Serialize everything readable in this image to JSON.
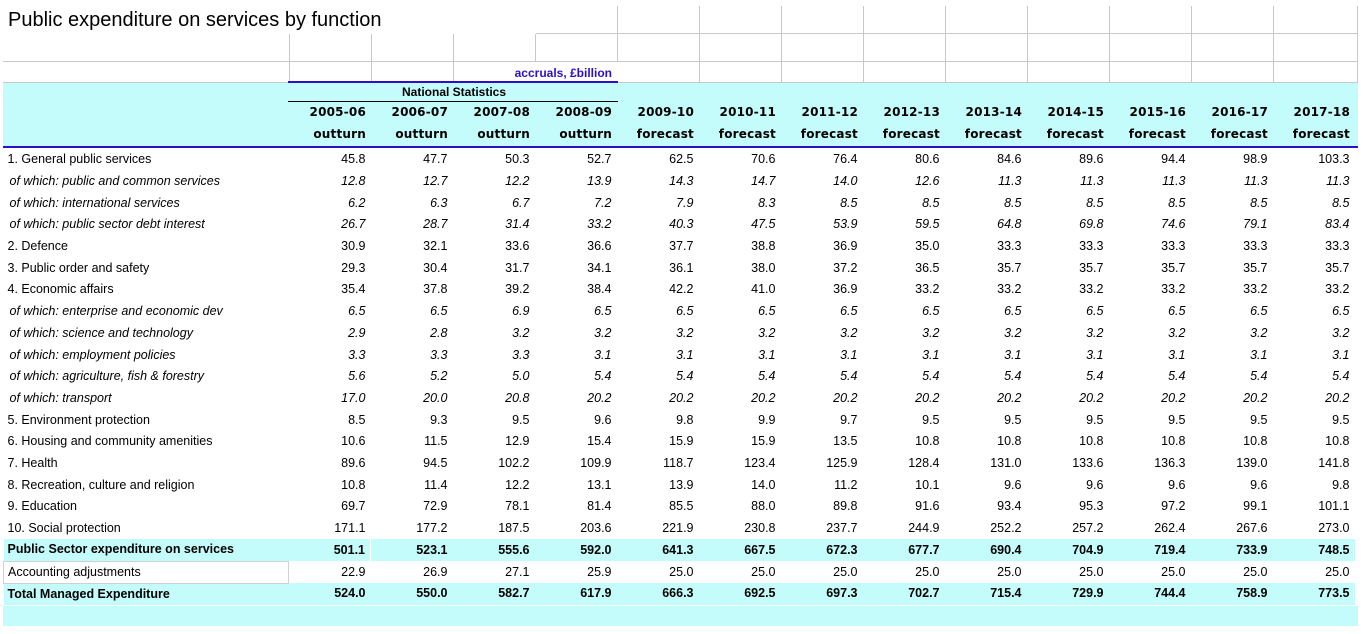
{
  "title": "Public expenditure on services by function",
  "units_label": "accruals, £billion",
  "stats_label": "National Statistics",
  "columns": [
    {
      "year": "2005-06",
      "kind": "outturn"
    },
    {
      "year": "2006-07",
      "kind": "outturn"
    },
    {
      "year": "2007-08",
      "kind": "outturn"
    },
    {
      "year": "2008-09",
      "kind": "outturn"
    },
    {
      "year": "2009-10",
      "kind": "forecast"
    },
    {
      "year": "2010-11",
      "kind": "forecast"
    },
    {
      "year": "2011-12",
      "kind": "forecast"
    },
    {
      "year": "2012-13",
      "kind": "forecast"
    },
    {
      "year": "2013-14",
      "kind": "forecast"
    },
    {
      "year": "2014-15",
      "kind": "forecast"
    },
    {
      "year": "2015-16",
      "kind": "forecast"
    },
    {
      "year": "2016-17",
      "kind": "forecast"
    },
    {
      "year": "2017-18",
      "kind": "forecast"
    }
  ],
  "rows": [
    {
      "label": "1. General public services",
      "style": "main",
      "values": [
        "45.8",
        "47.7",
        "50.3",
        "52.7",
        "62.5",
        "70.6",
        "76.4",
        "80.6",
        "84.6",
        "89.6",
        "94.4",
        "98.9",
        "103.3"
      ]
    },
    {
      "label": "of which: public and common services",
      "style": "sub",
      "values": [
        "12.8",
        "12.7",
        "12.2",
        "13.9",
        "14.3",
        "14.7",
        "14.0",
        "12.6",
        "11.3",
        "11.3",
        "11.3",
        "11.3",
        "11.3"
      ]
    },
    {
      "label": "of which: international services",
      "style": "sub",
      "values": [
        "6.2",
        "6.3",
        "6.7",
        "7.2",
        "7.9",
        "8.3",
        "8.5",
        "8.5",
        "8.5",
        "8.5",
        "8.5",
        "8.5",
        "8.5"
      ]
    },
    {
      "label": "of which: public sector debt interest",
      "style": "sub",
      "values": [
        "26.7",
        "28.7",
        "31.4",
        "33.2",
        "40.3",
        "47.5",
        "53.9",
        "59.5",
        "64.8",
        "69.8",
        "74.6",
        "79.1",
        "83.4"
      ]
    },
    {
      "label": "2. Defence",
      "style": "main",
      "values": [
        "30.9",
        "32.1",
        "33.6",
        "36.6",
        "37.7",
        "38.8",
        "36.9",
        "35.0",
        "33.3",
        "33.3",
        "33.3",
        "33.3",
        "33.3"
      ]
    },
    {
      "label": "3. Public order and safety",
      "style": "main",
      "values": [
        "29.3",
        "30.4",
        "31.7",
        "34.1",
        "36.1",
        "38.0",
        "37.2",
        "36.5",
        "35.7",
        "35.7",
        "35.7",
        "35.7",
        "35.7"
      ]
    },
    {
      "label": "4. Economic affairs",
      "style": "main",
      "values": [
        "35.4",
        "37.8",
        "39.2",
        "38.4",
        "42.2",
        "41.0",
        "36.9",
        "33.2",
        "33.2",
        "33.2",
        "33.2",
        "33.2",
        "33.2"
      ]
    },
    {
      "label": "of which: enterprise and economic dev",
      "style": "sub",
      "values": [
        "6.5",
        "6.5",
        "6.9",
        "6.5",
        "6.5",
        "6.5",
        "6.5",
        "6.5",
        "6.5",
        "6.5",
        "6.5",
        "6.5",
        "6.5"
      ]
    },
    {
      "label": "of which: science and technology",
      "style": "sub",
      "values": [
        "2.9",
        "2.8",
        "3.2",
        "3.2",
        "3.2",
        "3.2",
        "3.2",
        "3.2",
        "3.2",
        "3.2",
        "3.2",
        "3.2",
        "3.2"
      ]
    },
    {
      "label": "of which: employment policies",
      "style": "sub",
      "values": [
        "3.3",
        "3.3",
        "3.3",
        "3.1",
        "3.1",
        "3.1",
        "3.1",
        "3.1",
        "3.1",
        "3.1",
        "3.1",
        "3.1",
        "3.1"
      ]
    },
    {
      "label": "of which: agriculture, fish & forestry",
      "style": "sub",
      "values": [
        "5.6",
        "5.2",
        "5.0",
        "5.4",
        "5.4",
        "5.4",
        "5.4",
        "5.4",
        "5.4",
        "5.4",
        "5.4",
        "5.4",
        "5.4"
      ]
    },
    {
      "label": "of which: transport",
      "style": "sub",
      "values": [
        "17.0",
        "20.0",
        "20.8",
        "20.2",
        "20.2",
        "20.2",
        "20.2",
        "20.2",
        "20.2",
        "20.2",
        "20.2",
        "20.2",
        "20.2"
      ]
    },
    {
      "label": "5. Environment protection",
      "style": "main",
      "values": [
        "8.5",
        "9.3",
        "9.5",
        "9.6",
        "9.8",
        "9.9",
        "9.7",
        "9.5",
        "9.5",
        "9.5",
        "9.5",
        "9.5",
        "9.5"
      ]
    },
    {
      "label": "6. Housing and community amenities",
      "style": "main",
      "values": [
        "10.6",
        "11.5",
        "12.9",
        "15.4",
        "15.9",
        "15.9",
        "13.5",
        "10.8",
        "10.8",
        "10.8",
        "10.8",
        "10.8",
        "10.8"
      ]
    },
    {
      "label": "7. Health",
      "style": "main",
      "values": [
        "89.6",
        "94.5",
        "102.2",
        "109.9",
        "118.7",
        "123.4",
        "125.9",
        "128.4",
        "131.0",
        "133.6",
        "136.3",
        "139.0",
        "141.8"
      ]
    },
    {
      "label": "8. Recreation, culture and religion",
      "style": "main",
      "values": [
        "10.8",
        "11.4",
        "12.2",
        "13.1",
        "13.9",
        "14.0",
        "11.2",
        "10.1",
        "9.6",
        "9.6",
        "9.6",
        "9.6",
        "9.8"
      ]
    },
    {
      "label": "9. Education",
      "style": "main",
      "values": [
        "69.7",
        "72.9",
        "78.1",
        "81.4",
        "85.5",
        "88.0",
        "89.8",
        "91.6",
        "93.4",
        "95.3",
        "97.2",
        "99.1",
        "101.1"
      ]
    },
    {
      "label": "10. Social protection",
      "style": "main",
      "values": [
        "171.1",
        "177.2",
        "187.5",
        "203.6",
        "221.9",
        "230.8",
        "237.7",
        "244.9",
        "252.2",
        "257.2",
        "262.4",
        "267.6",
        "273.0"
      ]
    },
    {
      "label": "Public Sector expenditure on services",
      "style": "total",
      "values": [
        "501.1",
        "523.1",
        "555.6",
        "592.0",
        "641.3",
        "667.5",
        "672.3",
        "677.7",
        "690.4",
        "704.9",
        "719.4",
        "733.9",
        "748.5"
      ]
    },
    {
      "label": "Accounting adjustments",
      "style": "adj",
      "values": [
        "22.9",
        "26.9",
        "27.1",
        "25.9",
        "25.0",
        "25.0",
        "25.0",
        "25.0",
        "25.0",
        "25.0",
        "25.0",
        "25.0",
        "25.0"
      ]
    },
    {
      "label": "Total Managed Expenditure",
      "style": "total",
      "values": [
        "524.0",
        "550.0",
        "582.7",
        "617.9",
        "666.3",
        "692.5",
        "697.3",
        "702.7",
        "715.4",
        "729.9",
        "744.4",
        "758.9",
        "773.5"
      ]
    }
  ],
  "colors": {
    "header_fill": "#c4fcfc",
    "accent_blue": "#2b10c8"
  }
}
